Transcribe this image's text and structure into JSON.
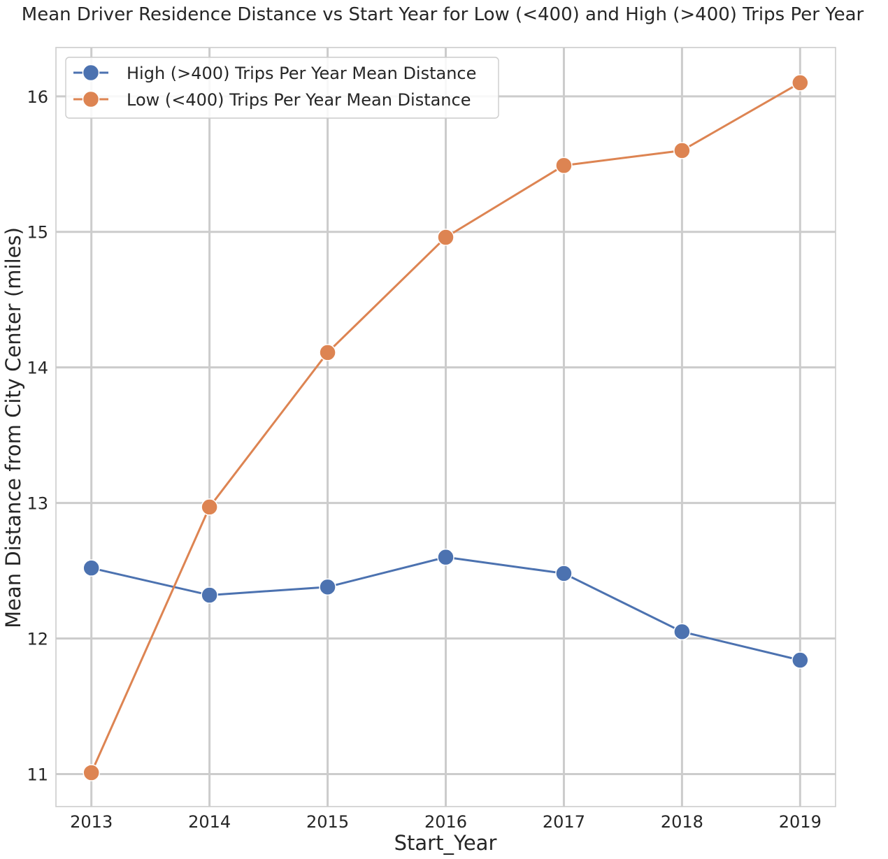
{
  "chart_data": {
    "type": "line",
    "title": "Mean Driver Residence Distance vs Start Year for Low (<400) and High (>400) Trips Per Year",
    "xlabel": "Start_Year",
    "ylabel": "Mean Distance from City Center (miles)",
    "x": [
      "2013",
      "2014",
      "2015",
      "2016",
      "2017",
      "2018",
      "2019"
    ],
    "xlim": [
      2012.7,
      2019.3
    ],
    "ylim": [
      10.76,
      16.36
    ],
    "yticks": [
      11,
      12,
      13,
      14,
      15,
      16
    ],
    "grid": true,
    "legend_position": "top-left",
    "series": [
      {
        "name": "High (>400) Trips Per Year Mean Distance",
        "color": "#4c72b0",
        "values": [
          12.52,
          12.32,
          12.38,
          12.6,
          12.48,
          12.05,
          11.84
        ]
      },
      {
        "name": "Low (<400) Trips Per Year Mean Distance",
        "color": "#dd8452",
        "values": [
          11.01,
          12.97,
          14.11,
          14.96,
          15.49,
          15.6,
          16.1
        ]
      }
    ]
  }
}
